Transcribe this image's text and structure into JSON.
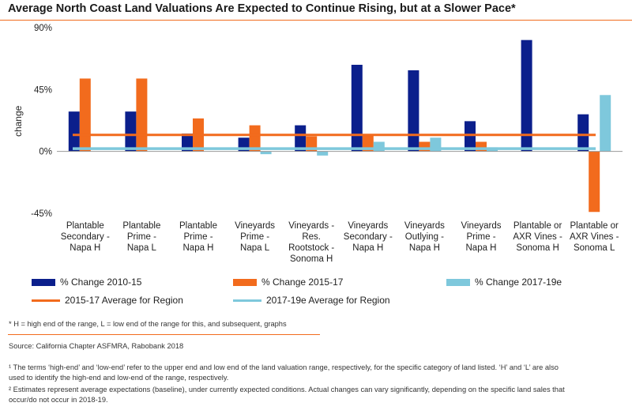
{
  "chart_data": {
    "type": "bar",
    "title": "Average North Coast Land Valuations Are Expected to Continue Rising, but at a Slower Pace*",
    "xlabel": "",
    "ylabel": "change",
    "ylim": [
      -45,
      90
    ],
    "yticks": [
      "90%",
      "45%",
      "0%",
      "-45%"
    ],
    "ytick_values": [
      90,
      45,
      0,
      -45
    ],
    "categories": [
      [
        "Plantable",
        "Secondary -",
        "Napa H"
      ],
      [
        "Plantable",
        "Prime -",
        "Napa L"
      ],
      [
        "Plantable",
        "Prime -",
        "Napa H"
      ],
      [
        "Vineyards",
        "Prime -",
        "Napa L"
      ],
      [
        "Vineyards -",
        "Res.",
        "Rootstock -",
        "Sonoma H"
      ],
      [
        "Vineyards",
        "Secondary -",
        "Napa H"
      ],
      [
        "Vineyards",
        "Outlying -",
        "Napa H"
      ],
      [
        "Vineyards",
        "Prime -",
        "Napa H"
      ],
      [
        "Plantable or",
        "AXR Vines -",
        "Sonoma H"
      ],
      [
        "Plantable or",
        "AXR Vines -",
        "Sonoma L"
      ]
    ],
    "series": [
      {
        "name": "% Change 2010-15",
        "color": "#0b1f8c",
        "values": [
          29,
          29,
          13,
          10,
          19,
          63,
          59,
          22,
          81,
          27
        ]
      },
      {
        "name": "% Change 2015-17",
        "color": "#f26b1d",
        "values": [
          53,
          53,
          24,
          19,
          11,
          12,
          7,
          7,
          0,
          -44
        ]
      },
      {
        "name": "% Change 2017-19e",
        "color": "#7ec8dc",
        "values": [
          0,
          0,
          0,
          -2,
          -3,
          7,
          10,
          3,
          0,
          41
        ]
      }
    ],
    "reference_lines": [
      {
        "name": "2015-17 Average for Region",
        "color": "#f26b1d",
        "value": 12
      },
      {
        "name": "2017-19e Average for Region",
        "color": "#7ec8dc",
        "value": 2
      }
    ]
  },
  "notes": {
    "key": "* H = high end of the range, L = low end of the range for this, and subsequent, graphs",
    "source": "Source: California Chapter ASFMRA, Rabobank 2018",
    "footnote1_line1": "¹ The terms ‘high-end’ and ‘low-end’ refer to the upper end and low end of the land valuation range, respectively, for the specific category of land listed. ‘H’ and ‘L’ are also",
    "footnote1_line2": "used to identify the high-end and low-end of the range, respectively.",
    "footnote2_line1": "² Estimates represent average expectations (baseline), under currently expected conditions. Actual changes can vary significantly, depending on the specific land sales that",
    "footnote2_line2": "occur/do not occur in 2018-19."
  }
}
